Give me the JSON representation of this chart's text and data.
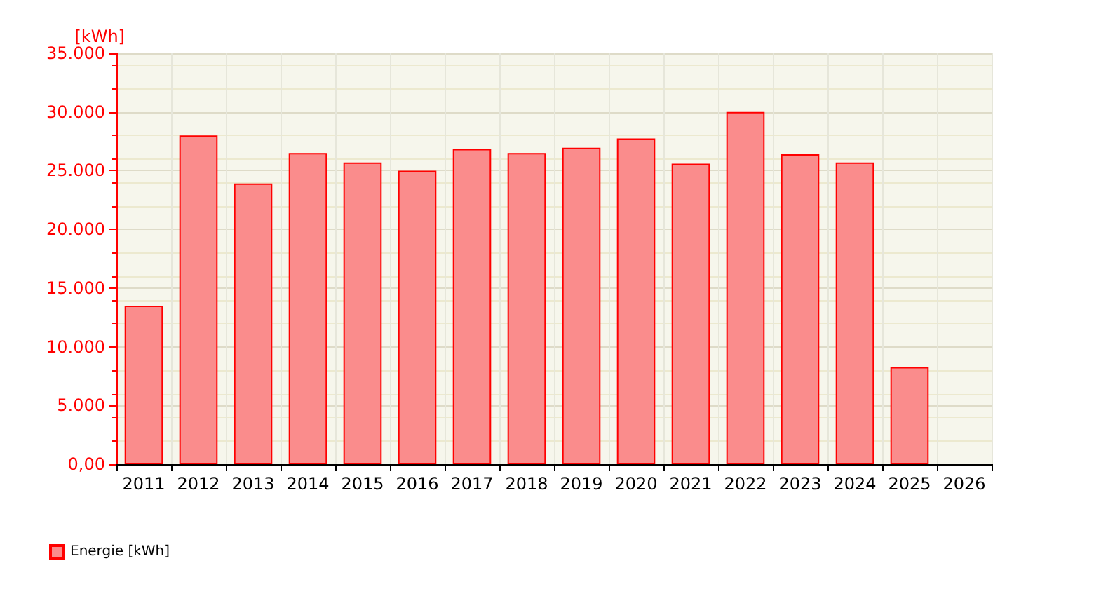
{
  "chart_data": {
    "type": "bar",
    "ylabel": "[kWh]",
    "categories": [
      "2011",
      "2012",
      "2013",
      "2014",
      "2015",
      "2016",
      "2017",
      "2018",
      "2019",
      "2020",
      "2021",
      "2022",
      "2023",
      "2024",
      "2025",
      "2026"
    ],
    "series": [
      {
        "name": "Energie [kWh]",
        "color": "#fa8c8c",
        "values": [
          13500,
          28000,
          23900,
          26500,
          25700,
          25000,
          26850,
          26500,
          26950,
          27750,
          25600,
          30000,
          26400,
          25700,
          8270,
          null
        ]
      }
    ],
    "ylim": [
      0,
      35000
    ],
    "yticks": [
      {
        "value": 0,
        "label": "0,00"
      },
      {
        "value": 5000,
        "label": "5.000"
      },
      {
        "value": 10000,
        "label": "10.000"
      },
      {
        "value": 15000,
        "label": "15.000"
      },
      {
        "value": 20000,
        "label": "20.000"
      },
      {
        "value": 25000,
        "label": "25.000"
      },
      {
        "value": 30000,
        "label": "30.000"
      },
      {
        "value": 35000,
        "label": "35.000"
      }
    ],
    "grid": true,
    "legend": "bottom left"
  }
}
